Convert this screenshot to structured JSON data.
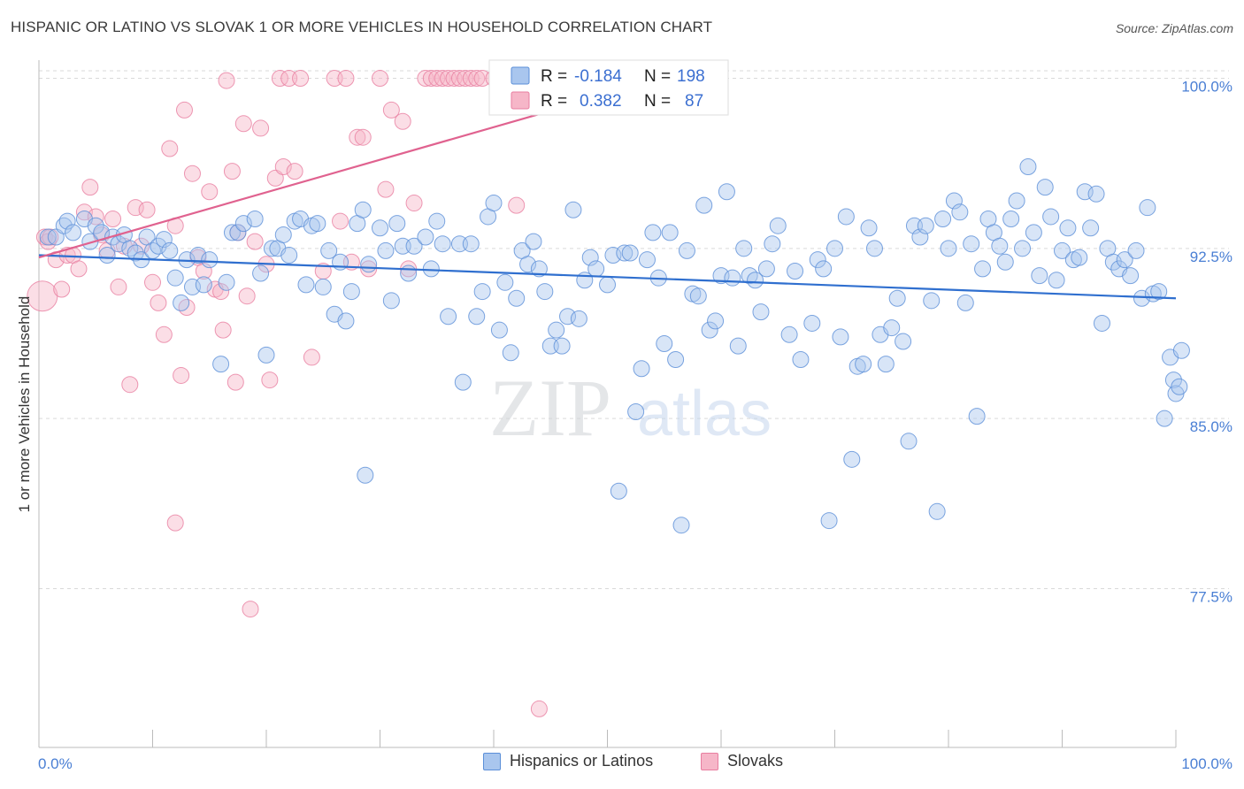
{
  "header": {
    "title": "HISPANIC OR LATINO VS SLOVAK 1 OR MORE VEHICLES IN HOUSEHOLD CORRELATION CHART",
    "source": "Source: ZipAtlas.com"
  },
  "watermark": {
    "zip": "ZIP",
    "atlas": "atlas"
  },
  "colors": {
    "blue_fill": "#a9c6ee",
    "blue_stroke": "#5b8fd8",
    "blue_line": "#2f6fcf",
    "pink_fill": "#f6b6c8",
    "pink_stroke": "#e87ea0",
    "pink_line": "#e0628f",
    "tick_text": "#4a7fd4",
    "grid": "#d9d9d9"
  },
  "legend": {
    "r_label": "R =",
    "n_label": "N =",
    "rows": [
      {
        "r": "-0.184",
        "n": "198"
      },
      {
        "r": "0.382",
        "n": "87"
      }
    ]
  },
  "bottom_legend": [
    "Hispanics or Latinos",
    "Slovaks"
  ],
  "chart_data": {
    "type": "scatter",
    "ylabel": "1 or more Vehicles in Household",
    "xlabel": "",
    "x_tick_labels": [
      "0.0%",
      "100.0%"
    ],
    "y_tick_labels": [
      "100.0%",
      "92.5%",
      "85.0%",
      "77.5%"
    ],
    "y_ticks": [
      100.0,
      92.5,
      85.0,
      77.5
    ],
    "xlim": [
      0,
      100
    ],
    "ylim": [
      70.5,
      100.8
    ],
    "grid": "horizontal dashed",
    "legend_placement": "top-center",
    "series": [
      {
        "name": "Hispanics or Latinos",
        "color": "blue",
        "trend": {
          "x": [
            0,
            100
          ],
          "y": [
            92.2,
            90.3
          ]
        },
        "points": [
          [
            0.8,
            93.0
          ],
          [
            1.5,
            93.0
          ],
          [
            2.2,
            93.5
          ],
          [
            2.5,
            93.7
          ],
          [
            3.0,
            93.2
          ],
          [
            4.0,
            93.8
          ],
          [
            4.5,
            92.8
          ],
          [
            5.0,
            93.5
          ],
          [
            5.5,
            93.2
          ],
          [
            6.0,
            92.2
          ],
          [
            6.5,
            93.0
          ],
          [
            7.0,
            92.7
          ],
          [
            7.5,
            93.1
          ],
          [
            8.0,
            92.5
          ],
          [
            8.5,
            92.3
          ],
          [
            9.0,
            92.0
          ],
          [
            9.5,
            93.0
          ],
          [
            10.0,
            92.4
          ],
          [
            10.5,
            92.6
          ],
          [
            11.0,
            92.9
          ],
          [
            11.5,
            92.4
          ],
          [
            12.0,
            91.2
          ],
          [
            12.5,
            90.1
          ],
          [
            13.0,
            92.0
          ],
          [
            13.5,
            90.8
          ],
          [
            14.0,
            92.2
          ],
          [
            14.5,
            90.9
          ],
          [
            15.0,
            92.0
          ],
          [
            16.0,
            87.4
          ],
          [
            16.5,
            91.0
          ],
          [
            17.0,
            93.2
          ],
          [
            17.5,
            93.2
          ],
          [
            18.0,
            93.6
          ],
          [
            19.0,
            93.8
          ],
          [
            19.5,
            91.4
          ],
          [
            20.0,
            87.8
          ],
          [
            20.5,
            92.5
          ],
          [
            21.0,
            92.5
          ],
          [
            21.5,
            93.1
          ],
          [
            22.0,
            92.2
          ],
          [
            22.5,
            93.7
          ],
          [
            23.0,
            93.8
          ],
          [
            23.5,
            90.9
          ],
          [
            24.0,
            93.5
          ],
          [
            24.5,
            93.6
          ],
          [
            25.0,
            90.8
          ],
          [
            25.5,
            92.4
          ],
          [
            26.0,
            89.6
          ],
          [
            26.5,
            91.9
          ],
          [
            27.0,
            89.3
          ],
          [
            27.5,
            90.6
          ],
          [
            28.0,
            93.6
          ],
          [
            28.5,
            94.2
          ],
          [
            28.7,
            82.5
          ],
          [
            29.0,
            91.8
          ],
          [
            30.0,
            93.4
          ],
          [
            30.5,
            92.4
          ],
          [
            31.0,
            90.2
          ],
          [
            31.5,
            93.6
          ],
          [
            32.0,
            92.6
          ],
          [
            32.5,
            91.4
          ],
          [
            33.0,
            92.6
          ],
          [
            34.0,
            93.0
          ],
          [
            34.5,
            91.6
          ],
          [
            35.0,
            93.7
          ],
          [
            35.5,
            92.7
          ],
          [
            36.0,
            89.5
          ],
          [
            37.0,
            92.7
          ],
          [
            37.3,
            86.6
          ],
          [
            38.0,
            92.7
          ],
          [
            38.5,
            89.5
          ],
          [
            39.0,
            90.6
          ],
          [
            39.5,
            93.9
          ],
          [
            40.0,
            94.5
          ],
          [
            40.5,
            88.9
          ],
          [
            41.0,
            91.0
          ],
          [
            41.5,
            87.9
          ],
          [
            42.0,
            90.3
          ],
          [
            42.5,
            92.4
          ],
          [
            43.0,
            91.8
          ],
          [
            43.5,
            92.8
          ],
          [
            44.0,
            91.6
          ],
          [
            44.5,
            90.6
          ],
          [
            45.0,
            88.2
          ],
          [
            45.5,
            88.9
          ],
          [
            46.0,
            88.2
          ],
          [
            46.5,
            89.5
          ],
          [
            47.0,
            94.2
          ],
          [
            47.5,
            89.4
          ],
          [
            48.0,
            91.1
          ],
          [
            48.5,
            92.1
          ],
          [
            49.0,
            91.6
          ],
          [
            50.0,
            90.9
          ],
          [
            50.5,
            92.2
          ],
          [
            51.0,
            81.8
          ],
          [
            51.5,
            92.3
          ],
          [
            52.0,
            92.3
          ],
          [
            52.5,
            85.3
          ],
          [
            53.0,
            87.2
          ],
          [
            53.5,
            92.0
          ],
          [
            54.0,
            93.2
          ],
          [
            54.5,
            91.2
          ],
          [
            55.0,
            88.3
          ],
          [
            55.5,
            93.2
          ],
          [
            56.0,
            87.6
          ],
          [
            56.5,
            80.3
          ],
          [
            57.0,
            92.4
          ],
          [
            57.5,
            90.5
          ],
          [
            58.0,
            90.4
          ],
          [
            58.5,
            94.4
          ],
          [
            59.0,
            88.9
          ],
          [
            59.5,
            89.3
          ],
          [
            60.0,
            91.3
          ],
          [
            60.5,
            95.0
          ],
          [
            61.0,
            91.2
          ],
          [
            61.5,
            88.2
          ],
          [
            62.0,
            92.5
          ],
          [
            62.5,
            91.3
          ],
          [
            63.0,
            91.1
          ],
          [
            63.5,
            89.7
          ],
          [
            64.0,
            91.6
          ],
          [
            64.5,
            92.7
          ],
          [
            65.0,
            93.5
          ],
          [
            66.0,
            88.7
          ],
          [
            66.5,
            91.5
          ],
          [
            67.0,
            87.6
          ],
          [
            68.0,
            89.2
          ],
          [
            68.5,
            92.0
          ],
          [
            69.0,
            91.6
          ],
          [
            69.5,
            80.5
          ],
          [
            70.0,
            92.5
          ],
          [
            70.5,
            88.6
          ],
          [
            71.0,
            93.9
          ],
          [
            71.5,
            83.2
          ],
          [
            72.0,
            87.3
          ],
          [
            72.5,
            87.4
          ],
          [
            73.0,
            93.4
          ],
          [
            73.5,
            92.5
          ],
          [
            74.0,
            88.7
          ],
          [
            74.5,
            87.4
          ],
          [
            75.0,
            89.0
          ],
          [
            75.5,
            90.3
          ],
          [
            76.0,
            88.4
          ],
          [
            76.5,
            84.0
          ],
          [
            77.0,
            93.5
          ],
          [
            77.5,
            93.0
          ],
          [
            78.0,
            93.5
          ],
          [
            78.5,
            90.2
          ],
          [
            79.0,
            80.9
          ],
          [
            79.5,
            93.8
          ],
          [
            80.0,
            92.5
          ],
          [
            80.5,
            94.6
          ],
          [
            81.0,
            94.1
          ],
          [
            81.5,
            90.1
          ],
          [
            82.0,
            92.7
          ],
          [
            82.5,
            85.1
          ],
          [
            83.0,
            91.6
          ],
          [
            83.5,
            93.8
          ],
          [
            84.0,
            93.2
          ],
          [
            84.5,
            92.6
          ],
          [
            85.0,
            91.9
          ],
          [
            85.5,
            93.8
          ],
          [
            86.0,
            94.6
          ],
          [
            86.5,
            92.5
          ],
          [
            87.0,
            96.1
          ],
          [
            87.5,
            93.2
          ],
          [
            88.0,
            91.3
          ],
          [
            88.5,
            95.2
          ],
          [
            89.0,
            93.9
          ],
          [
            89.5,
            91.1
          ],
          [
            90.0,
            92.4
          ],
          [
            90.5,
            93.4
          ],
          [
            91.0,
            92.0
          ],
          [
            91.5,
            92.1
          ],
          [
            92.0,
            95.0
          ],
          [
            92.5,
            93.4
          ],
          [
            93.0,
            94.9
          ],
          [
            93.5,
            89.2
          ],
          [
            94.0,
            92.5
          ],
          [
            94.5,
            91.9
          ],
          [
            95.0,
            91.6
          ],
          [
            95.5,
            92.0
          ],
          [
            96.0,
            91.3
          ],
          [
            96.5,
            92.4
          ],
          [
            97.0,
            90.3
          ],
          [
            97.5,
            94.3
          ],
          [
            98.0,
            90.5
          ],
          [
            98.5,
            90.6
          ],
          [
            99.0,
            85.0
          ],
          [
            99.5,
            87.7
          ],
          [
            99.8,
            86.7
          ],
          [
            100.0,
            86.1
          ],
          [
            100.5,
            88.0
          ],
          [
            100.3,
            86.4
          ]
        ]
      },
      {
        "name": "Slovaks",
        "color": "pink",
        "trend": {
          "x": [
            0,
            55
          ],
          "y": [
            92.1,
            100.0
          ]
        },
        "points": [
          [
            0.3,
            90.4
          ],
          [
            0.5,
            93.0
          ],
          [
            0.8,
            92.8
          ],
          [
            1.0,
            93.0
          ],
          [
            1.5,
            92.0
          ],
          [
            2.0,
            90.7
          ],
          [
            2.5,
            92.2
          ],
          [
            3.0,
            92.2
          ],
          [
            3.5,
            91.6
          ],
          [
            4.0,
            94.1
          ],
          [
            4.5,
            95.2
          ],
          [
            5.0,
            93.9
          ],
          [
            5.5,
            93.1
          ],
          [
            6.0,
            92.4
          ],
          [
            6.5,
            93.8
          ],
          [
            7.0,
            90.8
          ],
          [
            7.5,
            92.6
          ],
          [
            8.0,
            86.5
          ],
          [
            8.5,
            94.3
          ],
          [
            9.0,
            92.6
          ],
          [
            9.5,
            94.2
          ],
          [
            10.0,
            91.0
          ],
          [
            10.5,
            90.1
          ],
          [
            11.0,
            88.7
          ],
          [
            11.5,
            96.9
          ],
          [
            12.0,
            93.5
          ],
          [
            12.5,
            86.9
          ],
          [
            12.8,
            98.6
          ],
          [
            13.0,
            89.9
          ],
          [
            13.5,
            95.8
          ],
          [
            14.0,
            92.1
          ],
          [
            14.5,
            91.5
          ],
          [
            15.0,
            95.0
          ],
          [
            15.5,
            90.7
          ],
          [
            16.0,
            90.6
          ],
          [
            16.2,
            88.9
          ],
          [
            16.5,
            99.9
          ],
          [
            17.0,
            95.9
          ],
          [
            17.3,
            86.6
          ],
          [
            17.5,
            93.2
          ],
          [
            18.0,
            98.0
          ],
          [
            18.3,
            90.4
          ],
          [
            18.6,
            76.6
          ],
          [
            19.0,
            92.8
          ],
          [
            19.5,
            97.8
          ],
          [
            20.0,
            91.8
          ],
          [
            20.3,
            86.7
          ],
          [
            20.8,
            95.6
          ],
          [
            21.2,
            100.0
          ],
          [
            21.5,
            96.1
          ],
          [
            22.0,
            100.0
          ],
          [
            22.5,
            95.9
          ],
          [
            23.0,
            100.0
          ],
          [
            24.0,
            87.7
          ],
          [
            25.0,
            91.5
          ],
          [
            26.0,
            100.0
          ],
          [
            26.5,
            93.7
          ],
          [
            27.0,
            100.0
          ],
          [
            27.5,
            91.9
          ],
          [
            28.0,
            97.4
          ],
          [
            28.5,
            97.4
          ],
          [
            29.0,
            91.6
          ],
          [
            30.0,
            100.0
          ],
          [
            30.5,
            95.1
          ],
          [
            31.0,
            98.6
          ],
          [
            32.0,
            98.1
          ],
          [
            32.5,
            91.6
          ],
          [
            33.0,
            94.5
          ],
          [
            34.0,
            100.0
          ],
          [
            34.5,
            100.0
          ],
          [
            35.0,
            100.0
          ],
          [
            35.5,
            100.0
          ],
          [
            36.0,
            100.0
          ],
          [
            36.5,
            100.0
          ],
          [
            37.0,
            100.0
          ],
          [
            37.5,
            100.0
          ],
          [
            38.0,
            100.0
          ],
          [
            38.5,
            100.0
          ],
          [
            39.0,
            100.0
          ],
          [
            40.0,
            100.0
          ],
          [
            42.0,
            94.4
          ],
          [
            44.0,
            72.2
          ],
          [
            45.0,
            100.0
          ],
          [
            46.5,
            100.0
          ],
          [
            47.5,
            100.0
          ],
          [
            48.5,
            100.0
          ],
          [
            52.0,
            100.0
          ],
          [
            55.0,
            100.0
          ],
          [
            12.0,
            80.4
          ]
        ]
      }
    ]
  }
}
